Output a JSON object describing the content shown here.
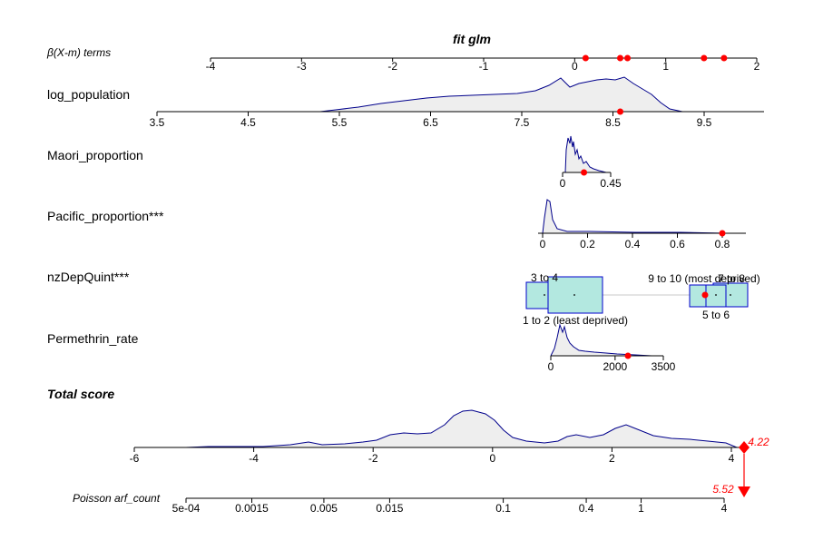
{
  "title": "fit glm",
  "beta_label": "β(X-m) terms",
  "beta_ticks": [
    "-4",
    "-3",
    "-2",
    "-1",
    "0",
    "1",
    "2"
  ],
  "beta_points": [
    0.12,
    0.5,
    0.58,
    1.42,
    1.64
  ],
  "variables": [
    {
      "key": "log_population",
      "label": "log_population",
      "ticks": [
        "3.5",
        "4.5",
        "5.5",
        "6.5",
        "7.5",
        "8.5",
        "9.5"
      ],
      "point": 8.58
    },
    {
      "key": "Maori_proportion",
      "label": "Maori_proportion",
      "ticks": [
        "0",
        "0.45"
      ],
      "point": 0.2
    },
    {
      "key": "Pacific_proportion",
      "label": "Pacific_proportion***",
      "ticks": [
        "0",
        "0.2",
        "0.4",
        "0.6",
        "0.8"
      ],
      "point": 0.8
    },
    {
      "key": "nzDepQuint",
      "label": "nzDepQuint***",
      "categories": [
        "1 to 2 (least deprived)",
        "3 to 4",
        "9 to 10 (most deprived)",
        "7 to 8",
        "5 to 6"
      ],
      "box_fill": "#b3e8e0"
    },
    {
      "key": "Permethrin_rate",
      "label": "Permethrin_rate",
      "ticks": [
        "0",
        "2000",
        "3500"
      ],
      "point": 2400
    }
  ],
  "total_label": "Total score",
  "total_ticks": [
    "-6",
    "-4",
    "-2",
    "0",
    "2",
    "4"
  ],
  "total_value": "4.22",
  "poisson_label": "Poisson  arf_count",
  "poisson_ticks": [
    "5e-04",
    "0.0015",
    "0.005",
    "0.015",
    "0.1",
    "0.4",
    "1",
    "4"
  ],
  "poisson_value": "5.52",
  "colors": {
    "density_line": "#00008b",
    "density_fill": "#eeeeee",
    "point": "#ff0000",
    "axis": "#000000",
    "box_border": "#0000cd"
  }
}
